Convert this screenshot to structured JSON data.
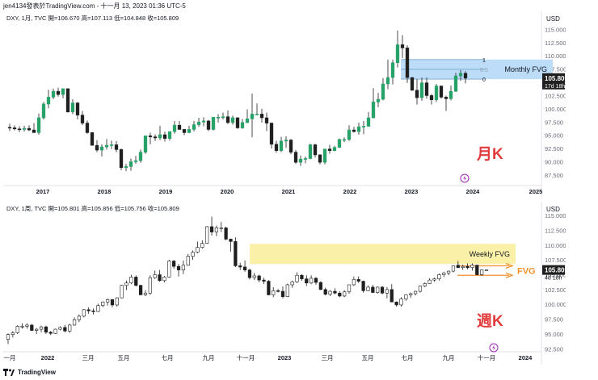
{
  "header": {
    "publisher": "jen4134發表於TradingView.com - 十一月 13, 2023 01:36 UTC-5"
  },
  "footer": {
    "brand": "TradingView"
  },
  "colors": {
    "up": "#26a269",
    "down": "#1f1f1f",
    "fvg_blue": "#bcdcf7",
    "fvg_yellow": "#fbf0a8",
    "label_red": "#e23b3b",
    "orange": "#f0912e",
    "grid": "#eef0f3"
  },
  "chart_data": [
    {
      "type": "candlestick",
      "info": "DXY, 1月, TVC  開=106.670  高=107.113  低=104.848  收=105.809",
      "currency": "USD",
      "annotation": "月K",
      "x_ticks": [
        "2017",
        "2018",
        "2019",
        "2020",
        "2021",
        "2022",
        "2023",
        "2024",
        "2025"
      ],
      "y_ticks": [
        "115.000",
        "112.500",
        "110.000",
        "107.500",
        "105.000",
        "102.500",
        "100.000",
        "97.500",
        "95.000",
        "92.500",
        "90.000",
        "87.500"
      ],
      "ylim": [
        85.5,
        117.5
      ],
      "price_label": "105.809",
      "countdown": "17d 18h",
      "fvg": {
        "label": "Monthly FVG",
        "top": 109.3,
        "bottom": 105.6,
        "levels": [
          "1",
          "0.5",
          "0"
        ]
      },
      "bars": [
        [
          96.5,
          97.2,
          95.8,
          96.4
        ],
        [
          96.4,
          96.9,
          95.9,
          96.2
        ],
        [
          96.2,
          96.7,
          95.6,
          96.1
        ],
        [
          96.1,
          96.8,
          95.7,
          96.3
        ],
        [
          96.3,
          96.9,
          95.8,
          96.0
        ],
        [
          96.0,
          97.3,
          95.6,
          95.5
        ],
        [
          95.5,
          99.1,
          95.1,
          98.3
        ],
        [
          98.3,
          101.3,
          98.0,
          100.9
        ],
        [
          100.9,
          103.6,
          100.1,
          102.2
        ],
        [
          102.2,
          103.8,
          101.8,
          103.3
        ],
        [
          103.3,
          104.0,
          102.3,
          102.7
        ],
        [
          102.7,
          103.8,
          102.0,
          103.8
        ],
        [
          103.8,
          103.8,
          99.3,
          99.4
        ],
        [
          99.4,
          101.8,
          99.0,
          101.1
        ],
        [
          101.1,
          101.3,
          98.0,
          98.8
        ],
        [
          98.8,
          99.6,
          96.9,
          97.3
        ],
        [
          97.3,
          97.8,
          95.3,
          95.5
        ],
        [
          95.5,
          95.6,
          93.1,
          93.1
        ],
        [
          93.1,
          94.1,
          91.8,
          92.2
        ],
        [
          92.2,
          93.3,
          91.0,
          92.8
        ],
        [
          92.8,
          94.3,
          92.3,
          93.1
        ],
        [
          93.1,
          94.0,
          92.4,
          93.2
        ],
        [
          93.2,
          93.9,
          91.8,
          92.3
        ],
        [
          92.3,
          92.5,
          88.4,
          88.9
        ],
        [
          88.9,
          89.6,
          88.2,
          89.1
        ],
        [
          89.1,
          90.6,
          88.3,
          90.0
        ],
        [
          90.0,
          91.1,
          89.6,
          90.2
        ],
        [
          90.2,
          92.3,
          89.8,
          91.8
        ],
        [
          91.8,
          94.9,
          91.5,
          94.9
        ],
        [
          94.9,
          95.5,
          93.3,
          94.7
        ],
        [
          94.7,
          95.2,
          93.9,
          94.5
        ],
        [
          94.5,
          96.8,
          94.1,
          95.1
        ],
        [
          95.1,
          95.7,
          93.8,
          94.4
        ],
        [
          94.4,
          95.7,
          94.0,
          95.7
        ],
        [
          95.7,
          97.7,
          95.3,
          96.9
        ],
        [
          96.9,
          97.7,
          96.0,
          96.1
        ],
        [
          96.1,
          96.2,
          95.0,
          95.5
        ],
        [
          95.5,
          96.8,
          95.4,
          96.1
        ],
        [
          96.1,
          97.7,
          95.7,
          97.0
        ],
        [
          97.0,
          98.3,
          96.6,
          97.5
        ],
        [
          97.5,
          98.4,
          96.7,
          97.7
        ],
        [
          97.7,
          97.9,
          95.8,
          96.1
        ],
        [
          96.1,
          98.4,
          95.9,
          98.4
        ],
        [
          98.4,
          99.0,
          97.4,
          98.4
        ],
        [
          98.4,
          99.3,
          98.0,
          98.5
        ],
        [
          98.5,
          99.7,
          97.1,
          97.4
        ],
        [
          97.4,
          98.7,
          97.0,
          98.3
        ],
        [
          98.3,
          98.4,
          96.2,
          96.4
        ],
        [
          96.4,
          98.1,
          96.2,
          97.4
        ],
        [
          97.4,
          99.9,
          97.3,
          98.1
        ],
        [
          98.1,
          102.9,
          94.6,
          99.0
        ],
        [
          99.0,
          101.0,
          98.8,
          99.0
        ],
        [
          99.0,
          100.0,
          97.4,
          98.3
        ],
        [
          98.3,
          99.3,
          95.8,
          97.3
        ],
        [
          97.3,
          97.4,
          92.5,
          93.3
        ],
        [
          93.3,
          94.0,
          91.7,
          92.1
        ],
        [
          92.1,
          94.7,
          91.8,
          93.9
        ],
        [
          93.9,
          94.8,
          92.6,
          94.1
        ],
        [
          94.1,
          94.3,
          91.4,
          91.8
        ],
        [
          91.8,
          92.2,
          89.6,
          89.9
        ],
        [
          89.9,
          91.2,
          89.2,
          90.5
        ],
        [
          90.5,
          91.0,
          89.7,
          90.6
        ],
        [
          90.6,
          93.4,
          90.5,
          93.2
        ],
        [
          93.2,
          93.4,
          90.8,
          91.3
        ],
        [
          91.3,
          91.4,
          89.5,
          89.9
        ],
        [
          89.9,
          92.4,
          89.5,
          92.4
        ],
        [
          92.4,
          93.2,
          91.5,
          92.1
        ],
        [
          92.1,
          93.0,
          92.0,
          92.7
        ],
        [
          92.7,
          94.4,
          92.6,
          94.2
        ],
        [
          94.2,
          94.6,
          93.7,
          94.2
        ],
        [
          94.2,
          96.9,
          93.9,
          96.0
        ],
        [
          96.0,
          96.6,
          95.5,
          95.7
        ],
        [
          95.7,
          97.4,
          95.1,
          96.6
        ],
        [
          96.6,
          97.7,
          95.2,
          96.7
        ],
        [
          96.7,
          99.4,
          96.6,
          98.3
        ],
        [
          98.3,
          103.9,
          98.2,
          101.3
        ],
        [
          101.3,
          103.0,
          100.3,
          101.8
        ],
        [
          101.8,
          105.8,
          101.6,
          104.7
        ],
        [
          104.7,
          109.3,
          103.7,
          105.9
        ],
        [
          105.9,
          109.3,
          104.6,
          108.7
        ],
        [
          108.7,
          114.8,
          107.8,
          112.1
        ],
        [
          112.1,
          113.9,
          109.6,
          111.5
        ],
        [
          111.5,
          112.0,
          104.9,
          105.9
        ],
        [
          105.9,
          106.0,
          103.4,
          103.5
        ],
        [
          103.5,
          105.6,
          100.8,
          102.1
        ],
        [
          102.1,
          105.9,
          101.5,
          104.9
        ],
        [
          104.9,
          105.9,
          101.9,
          102.5
        ],
        [
          102.5,
          102.8,
          100.8,
          101.7
        ],
        [
          101.7,
          104.7,
          101.3,
          104.3
        ],
        [
          104.3,
          104.4,
          101.9,
          102.2
        ],
        [
          102.2,
          102.5,
          99.6,
          101.9
        ],
        [
          101.9,
          104.4,
          101.6,
          103.3
        ],
        [
          103.3,
          106.8,
          103.2,
          106.2
        ],
        [
          106.2,
          107.3,
          105.3,
          106.7
        ],
        [
          106.7,
          107.1,
          104.8,
          105.8
        ]
      ]
    },
    {
      "type": "candlestick",
      "info": "DXY, 1周, TVC  開=105.801  高=105.856  低=105.756  收=105.809",
      "currency": "USD",
      "annotation": "週K",
      "x_ticks": [
        "一月",
        "2022",
        "三月",
        "五月",
        "七月",
        "九月",
        "十一月",
        "2023",
        "三月",
        "五月",
        "七月",
        "九月",
        "十一月",
        "2024"
      ],
      "y_ticks": [
        "115.000",
        "112.500",
        "110.000",
        "107.500",
        "105.000",
        "102.500",
        "100.000",
        "97.500",
        "95.000",
        "92.500"
      ],
      "ylim": [
        92.0,
        116.5
      ],
      "price_label": "105.809",
      "countdown": "4d 18h",
      "fvg": {
        "label": "Weekly FVG",
        "top": 110.2,
        "bottom": 106.8
      },
      "fvg2": {
        "label": "FVG",
        "top": 106.5,
        "bottom": 104.9
      },
      "bars": [
        [
          94.1,
          95.1,
          93.3,
          94.9
        ],
        [
          94.9,
          95.5,
          94.4,
          95.2
        ],
        [
          95.2,
          96.5,
          95.0,
          96.3
        ],
        [
          96.3,
          96.8,
          95.9,
          96.3
        ],
        [
          96.3,
          96.8,
          95.9,
          96.5
        ],
        [
          96.5,
          96.7,
          95.5,
          95.6
        ],
        [
          95.6,
          96.0,
          95.0,
          95.8
        ],
        [
          95.8,
          96.4,
          95.3,
          96.2
        ],
        [
          96.2,
          96.4,
          95.0,
          95.3
        ],
        [
          95.3,
          95.5,
          94.8,
          95.1
        ],
        [
          95.1,
          95.9,
          95.0,
          95.8
        ],
        [
          95.8,
          96.3,
          95.6,
          96.1
        ],
        [
          96.1,
          96.5,
          95.3,
          95.5
        ],
        [
          95.5,
          96.7,
          95.2,
          96.5
        ],
        [
          96.5,
          97.8,
          96.4,
          97.4
        ],
        [
          97.4,
          98.3,
          97.0,
          98.0
        ],
        [
          98.0,
          99.2,
          97.8,
          99.1
        ],
        [
          99.1,
          99.5,
          98.4,
          98.9
        ],
        [
          98.9,
          99.3,
          98.3,
          98.8
        ],
        [
          98.8,
          100.1,
          98.7,
          99.8
        ],
        [
          99.8,
          100.5,
          99.5,
          100.4
        ],
        [
          100.4,
          101.0,
          99.8,
          100.8
        ],
        [
          100.8,
          100.9,
          99.5,
          99.9
        ],
        [
          99.9,
          101.2,
          99.6,
          101.1
        ],
        [
          101.1,
          103.3,
          101.0,
          103.2
        ],
        [
          103.2,
          104.0,
          102.4,
          103.6
        ],
        [
          103.6,
          105.0,
          103.4,
          104.6
        ],
        [
          104.6,
          104.9,
          103.0,
          103.2
        ],
        [
          103.2,
          103.3,
          101.6,
          101.6
        ],
        [
          101.6,
          102.4,
          101.4,
          101.9
        ],
        [
          101.9,
          104.9,
          101.6,
          104.5
        ],
        [
          104.5,
          105.7,
          104.3,
          105.0
        ],
        [
          105.0,
          105.8,
          103.8,
          104.0
        ],
        [
          104.0,
          104.8,
          103.7,
          104.6
        ],
        [
          104.6,
          107.5,
          104.5,
          107.3
        ],
        [
          107.3,
          107.5,
          106.0,
          106.4
        ],
        [
          106.4,
          106.8,
          104.7,
          105.8
        ],
        [
          105.8,
          107.4,
          105.1,
          106.6
        ],
        [
          106.6,
          108.5,
          106.5,
          108.1
        ],
        [
          108.1,
          109.1,
          107.5,
          108.8
        ],
        [
          108.8,
          110.6,
          108.6,
          109.6
        ],
        [
          109.6,
          110.8,
          109.4,
          110.3
        ],
        [
          110.3,
          113.2,
          110.2,
          113.1
        ],
        [
          113.1,
          114.8,
          111.6,
          112.2
        ],
        [
          112.2,
          113.3,
          111.5,
          112.9
        ],
        [
          112.9,
          113.9,
          112.2,
          112.9
        ],
        [
          112.9,
          113.1,
          110.8,
          111.0
        ],
        [
          111.0,
          111.1,
          108.9,
          110.6
        ],
        [
          110.6,
          111.3,
          106.3,
          106.5
        ],
        [
          106.5,
          107.0,
          105.8,
          106.3
        ],
        [
          106.3,
          107.4,
          105.5,
          105.8
        ],
        [
          105.8,
          106.0,
          104.2,
          104.5
        ],
        [
          104.5,
          105.3,
          104.1,
          104.8
        ],
        [
          104.8,
          105.0,
          103.7,
          104.1
        ],
        [
          104.1,
          104.5,
          103.4,
          103.9
        ],
        [
          103.9,
          104.1,
          101.5,
          101.6
        ],
        [
          101.6,
          102.9,
          101.2,
          102.3
        ],
        [
          102.3,
          102.6,
          102.0,
          102.2
        ],
        [
          102.2,
          103.0,
          101.0,
          101.3
        ],
        [
          101.3,
          103.5,
          101.2,
          103.3
        ],
        [
          103.3,
          104.0,
          102.8,
          103.8
        ],
        [
          103.8,
          105.4,
          103.6,
          104.9
        ],
        [
          104.9,
          105.1,
          104.0,
          104.3
        ],
        [
          104.3,
          104.9,
          103.1,
          103.6
        ],
        [
          103.6,
          104.9,
          103.4,
          104.4
        ],
        [
          104.4,
          104.6,
          103.3,
          103.7
        ],
        [
          103.7,
          103.9,
          102.4,
          102.5
        ],
        [
          102.5,
          102.8,
          101.5,
          101.7
        ],
        [
          101.7,
          102.4,
          101.4,
          102.2
        ],
        [
          102.2,
          102.7,
          101.7,
          101.9
        ],
        [
          101.9,
          102.2,
          101.2,
          101.4
        ],
        [
          101.4,
          102.4,
          101.2,
          102.1
        ],
        [
          102.1,
          103.3,
          101.8,
          103.3
        ],
        [
          103.3,
          104.7,
          103.1,
          104.2
        ],
        [
          104.2,
          104.7,
          103.6,
          103.9
        ],
        [
          103.9,
          104.0,
          102.0,
          102.3
        ],
        [
          102.3,
          103.2,
          102.2,
          102.9
        ],
        [
          102.9,
          103.3,
          101.9,
          102.0
        ],
        [
          102.0,
          103.0,
          101.8,
          102.9
        ],
        [
          102.9,
          103.1,
          101.7,
          101.9
        ],
        [
          101.9,
          102.9,
          101.0,
          102.5
        ],
        [
          102.5,
          103.4,
          100.4,
          100.4
        ],
        [
          100.4,
          100.5,
          99.6,
          99.9
        ],
        [
          99.9,
          101.2,
          99.6,
          100.9
        ],
        [
          100.9,
          101.7,
          100.6,
          101.6
        ],
        [
          101.6,
          102.0,
          101.1,
          101.8
        ],
        [
          101.8,
          102.3,
          101.5,
          102.2
        ],
        [
          102.2,
          103.2,
          102.0,
          103.1
        ],
        [
          103.1,
          103.7,
          102.9,
          103.5
        ],
        [
          103.5,
          104.4,
          103.4,
          104.1
        ],
        [
          104.1,
          104.5,
          103.8,
          104.3
        ],
        [
          104.3,
          105.2,
          104.0,
          105.0
        ],
        [
          105.0,
          105.5,
          104.6,
          105.3
        ],
        [
          105.3,
          105.7,
          104.9,
          105.6
        ],
        [
          105.6,
          106.6,
          105.4,
          106.5
        ],
        [
          106.6,
          107.3,
          106.1,
          106.2
        ],
        [
          106.2,
          106.7,
          105.8,
          106.4
        ],
        [
          106.4,
          106.9,
          105.9,
          106.2
        ],
        [
          106.2,
          106.9,
          105.7,
          106.6
        ],
        [
          106.6,
          106.7,
          104.9,
          105.0
        ],
        [
          105.0,
          105.9,
          104.8,
          105.8
        ],
        [
          105.8,
          105.9,
          105.8,
          105.8
        ]
      ]
    }
  ]
}
